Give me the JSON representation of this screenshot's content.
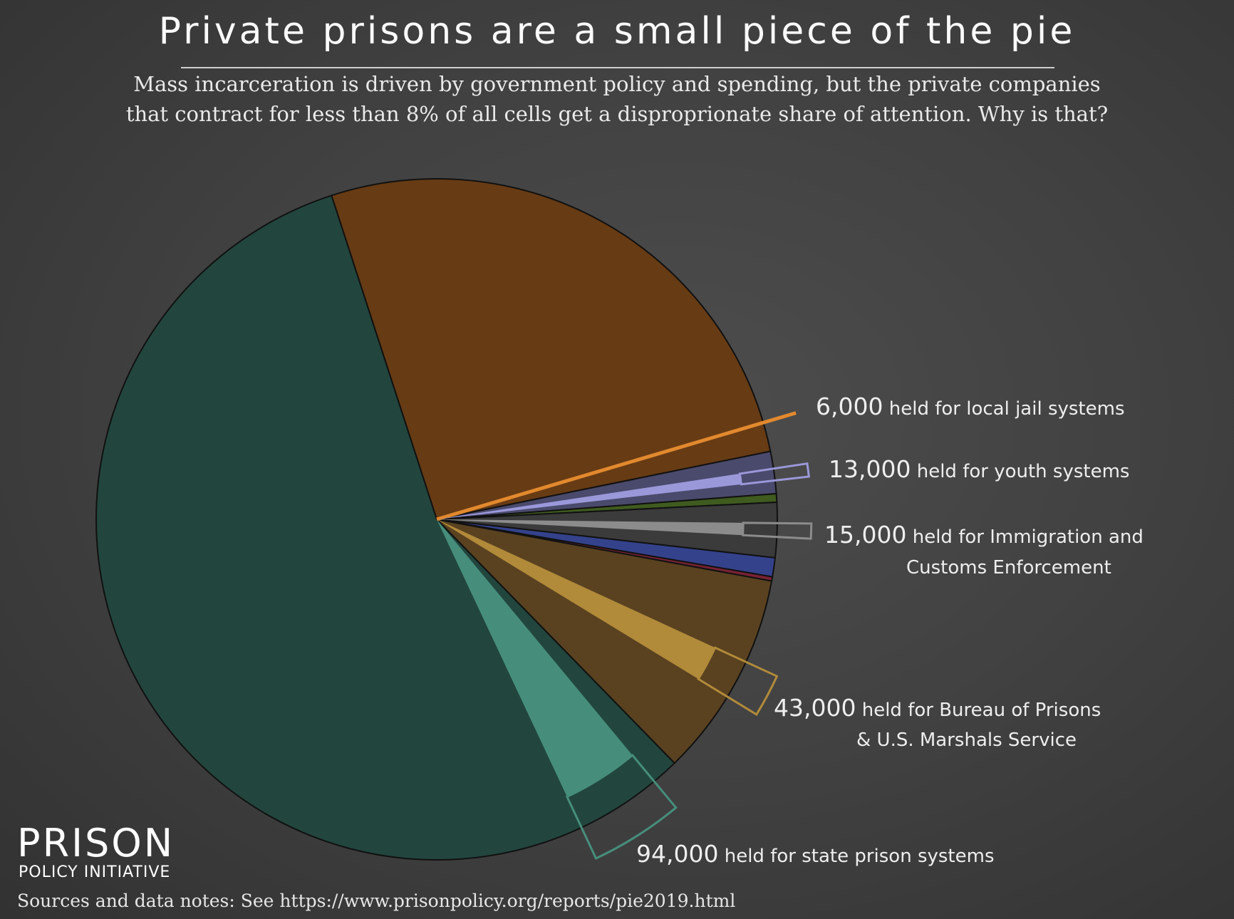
{
  "chart_data": {
    "type": "pie",
    "title": "Private prisons are a small piece of the pie",
    "subtitle": [
      "Mass incarceration is driven by government policy and spending, but the private companies",
      "that contract for less than 8% of all cells get a disproprionate share of attention. Why is that?"
    ],
    "slices": [
      {
        "key": "local",
        "share_pct": 26.8,
        "color": "#673b14"
      },
      {
        "key": "youth",
        "share_pct": 2.0,
        "color": "#4a4a6c"
      },
      {
        "key": "green-sliver",
        "share_pct": 0.4,
        "color": "#3f5b1f"
      },
      {
        "key": "immigration",
        "share_pct": 2.6,
        "color": "#3b3b3b"
      },
      {
        "key": "blue-sliver",
        "share_pct": 0.9,
        "color": "#34428c"
      },
      {
        "key": "red-sliver",
        "share_pct": 0.2,
        "color": "#7a2234"
      },
      {
        "key": "federal",
        "share_pct": 9.8,
        "color": "#5a4220"
      },
      {
        "key": "state",
        "share_pct": 57.3,
        "color": "#22463e"
      }
    ],
    "private": [
      {
        "key": "local",
        "count": "6,000",
        "text": "held for local jail systems",
        "text2": "",
        "count_value": 6000,
        "color": "#e2892e"
      },
      {
        "key": "youth",
        "count": "13,000",
        "text": "held for youth systems",
        "text2": "",
        "count_value": 13000,
        "color": "#9b98da"
      },
      {
        "key": "immigration",
        "count": "15,000",
        "text": "held for Immigration and",
        "text2": "Customs Enforcement",
        "count_value": 15000,
        "color": "#8c8c8c"
      },
      {
        "key": "federal",
        "count": "43,000",
        "text": "held for Bureau of Prisons",
        "text2": "& U.S. Marshals Service",
        "count_value": 43000,
        "color": "#b18a3a"
      },
      {
        "key": "state",
        "count": "94,000",
        "text": "held for state prison systems",
        "text2": "",
        "count_value": 94000,
        "color": "#468e7b"
      }
    ]
  },
  "logo": {
    "line1": "PRISON",
    "line2": "POLICY INITIATIVE"
  },
  "sources": "Sources and data notes: See https://www.prisonpolicy.org/reports/pie2019.html"
}
